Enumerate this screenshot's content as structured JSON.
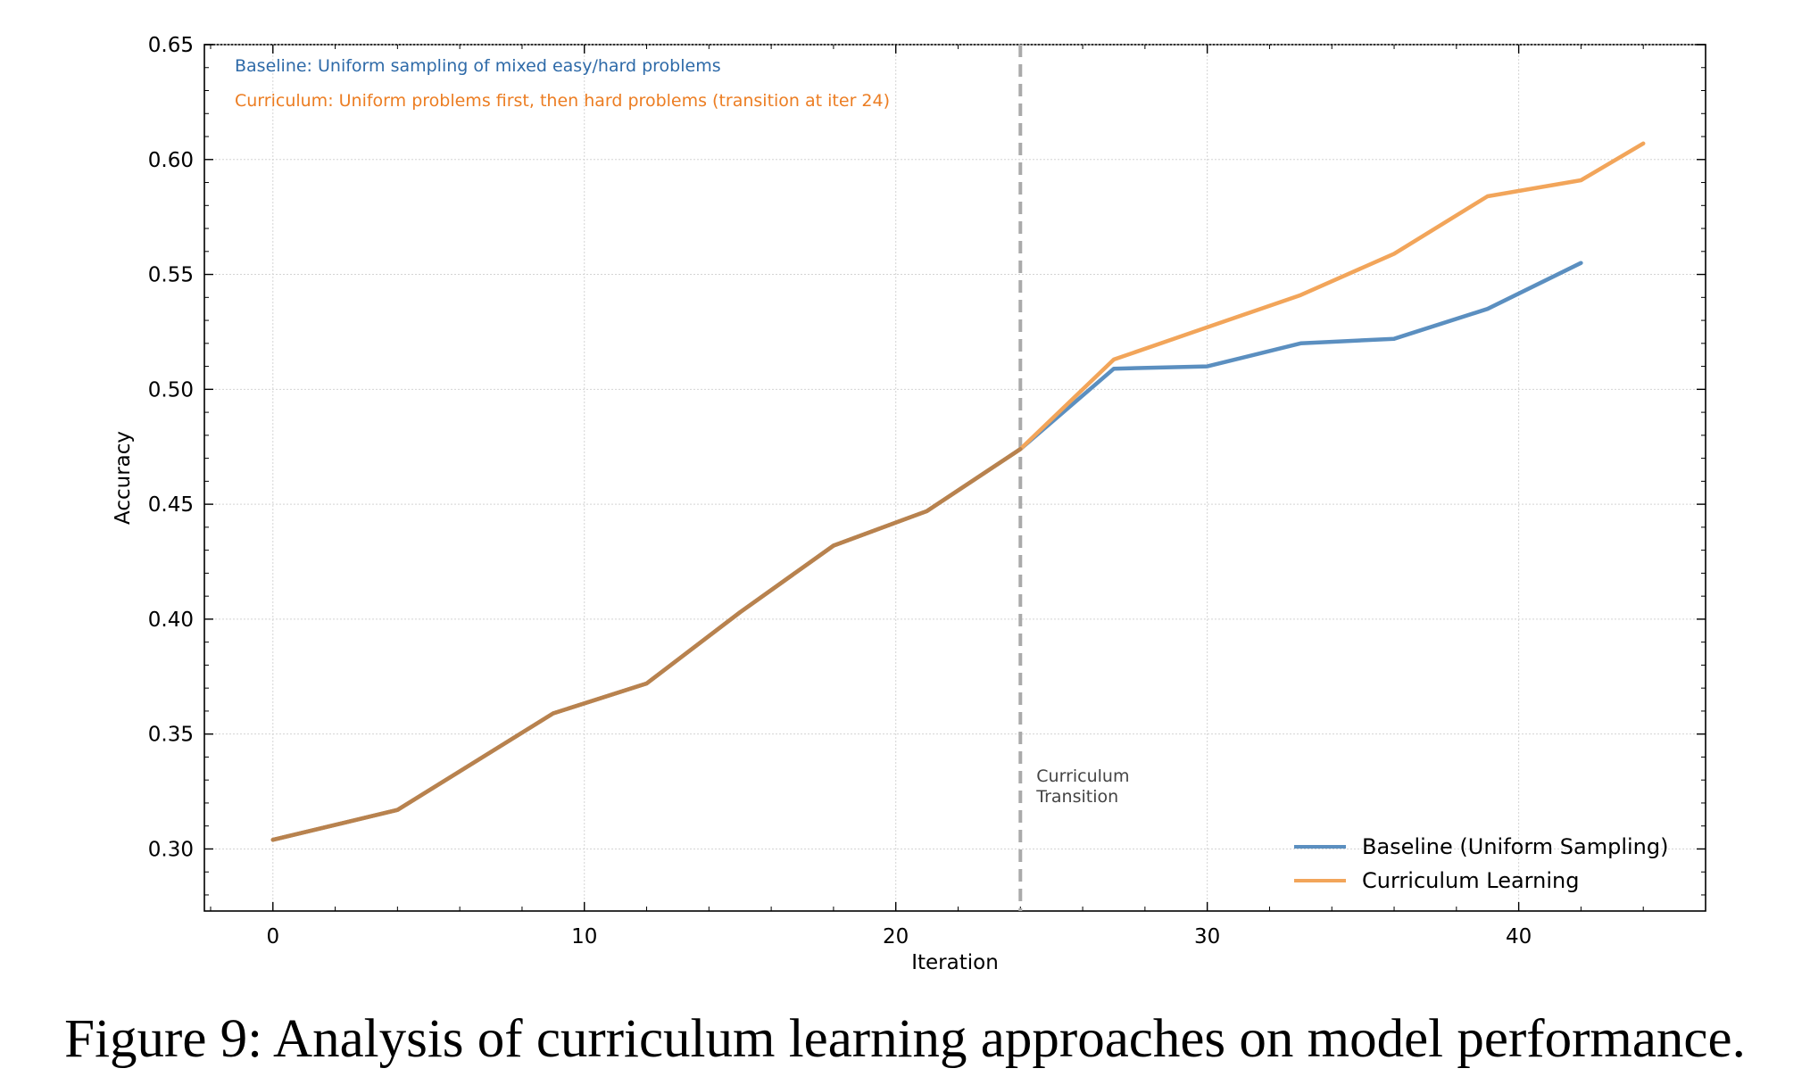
{
  "caption": "Figure 9: Analysis of curriculum learning approaches on model performance.",
  "chart_data": {
    "type": "line",
    "title": "",
    "xlabel": "Iteration",
    "ylabel": "Accuracy",
    "xlim": [
      -2.2,
      46
    ],
    "ylim": [
      0.273,
      0.65
    ],
    "xticks": [
      0,
      10,
      20,
      30,
      40
    ],
    "yticks": [
      0.3,
      0.35,
      0.4,
      0.45,
      0.5,
      0.55,
      0.6,
      0.65
    ],
    "grid": true,
    "legend_position": "lower-right",
    "series": [
      {
        "name": "Baseline (Uniform Sampling)",
        "color": "#5b8fc0",
        "x": [
          0,
          4,
          9,
          12,
          15,
          18,
          21,
          24,
          27,
          30,
          33,
          36,
          39,
          42
        ],
        "y": [
          0.304,
          0.317,
          0.359,
          0.372,
          0.403,
          0.432,
          0.447,
          0.474,
          0.509,
          0.51,
          0.52,
          0.522,
          0.535,
          0.555
        ]
      },
      {
        "name": "Curriculum Learning",
        "color": "#f2a55a",
        "x": [
          0,
          4,
          9,
          12,
          15,
          18,
          21,
          24,
          27,
          30,
          33,
          36,
          39,
          42,
          44
        ],
        "y": [
          0.304,
          0.317,
          0.359,
          0.372,
          0.403,
          0.432,
          0.447,
          0.474,
          0.513,
          0.527,
          0.541,
          0.559,
          0.584,
          0.591,
          0.607
        ]
      }
    ],
    "transition_line": {
      "x": 24,
      "label_line1": "Curriculum",
      "label_line2": "Transition",
      "color": "#aaaaaa"
    },
    "annotations": [
      {
        "text": "Baseline: Uniform sampling of mixed easy/hard problems",
        "color": "#2e6aa8"
      },
      {
        "text": "Curriculum: Uniform problems first, then hard problems (transition at iter 24)",
        "color": "#ec7d22"
      }
    ],
    "overlap_color": "#b8824e"
  }
}
